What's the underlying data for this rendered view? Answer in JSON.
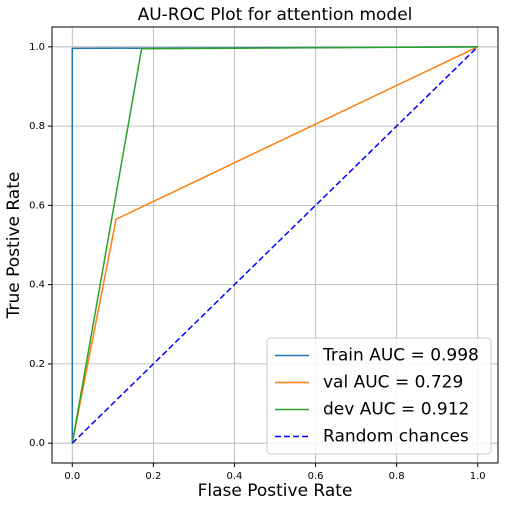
{
  "chart_data": {
    "type": "line",
    "title": "AU-ROC Plot for attention model",
    "xlabel": "Flase Postive Rate",
    "ylabel": "True Postive Rate",
    "xlim": [
      -0.05,
      1.05
    ],
    "ylim": [
      -0.05,
      1.05
    ],
    "xticks": [
      {
        "value": 0,
        "label": "0.0"
      },
      0.2,
      0.4,
      0.6,
      0.8,
      {
        "value": 1,
        "label": "1.0"
      }
    ],
    "yticks": [
      {
        "value": 0,
        "label": "0.0"
      },
      0.2,
      0.4,
      0.6,
      0.8,
      {
        "value": 1,
        "label": "1.0"
      }
    ],
    "grid": true,
    "legend": "lower right",
    "series": [
      {
        "name": "Train AUC = 0.998",
        "color": "#1f77b4",
        "linestyle": "solid",
        "x": [
          0,
          0,
          1
        ],
        "values": [
          0,
          0.996,
          1
        ]
      },
      {
        "name": "val AUC = 0.729",
        "color": "#ff7f0e",
        "linestyle": "solid",
        "x": [
          0,
          0.108,
          1
        ],
        "values": [
          0,
          0.565,
          1
        ]
      },
      {
        "name": "dev AUC = 0.912",
        "color": "#2ca02c",
        "linestyle": "solid",
        "x": [
          0,
          0.171,
          1
        ],
        "values": [
          0,
          0.995,
          1
        ]
      },
      {
        "name": "Random chances",
        "color": "#0000ff",
        "linestyle": "dashed",
        "x": [
          0,
          1
        ],
        "values": [
          0,
          1
        ]
      }
    ]
  }
}
